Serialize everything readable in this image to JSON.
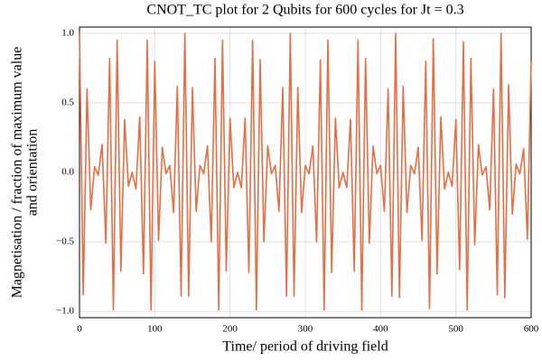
{
  "chart_data": {
    "type": "line",
    "title": "CNOT_TC plot for 2 Qubits for 600 cycles for Jt = 0.3",
    "xlabel": "Time/ period of driving field",
    "ylabel": [
      "Magnetisation / fraction of maximum value",
      "and orientation"
    ],
    "x": [
      0,
      5,
      10,
      15,
      20,
      25,
      30,
      35,
      40,
      45,
      50,
      55,
      60,
      65,
      70,
      75,
      80,
      85,
      90,
      95,
      100,
      105,
      110,
      115,
      120,
      125,
      130,
      135,
      140,
      145,
      150,
      155,
      160,
      165,
      170,
      175,
      180,
      185,
      190,
      195,
      200,
      205,
      210,
      215,
      220,
      225,
      230,
      235,
      240,
      245,
      250,
      255,
      260,
      265,
      270,
      275,
      280,
      285,
      290,
      295,
      300,
      305,
      310,
      315,
      320,
      325,
      330,
      335,
      340,
      345,
      350,
      355,
      360,
      365,
      370,
      375,
      380,
      385,
      390,
      395,
      400,
      405,
      410,
      415,
      420,
      425,
      430,
      435,
      440,
      445,
      450,
      455,
      460,
      465,
      470,
      475,
      480,
      485,
      490,
      495,
      500,
      505,
      510,
      515,
      520,
      525,
      530,
      535,
      540,
      545,
      550,
      555,
      560,
      565,
      570,
      575,
      580,
      585,
      590,
      595,
      600
    ],
    "series": [
      {
        "color": "#e26f46",
        "values": [
          1.0,
          -0.88,
          0.6,
          -0.27,
          0.04,
          -0.02,
          0.2,
          -0.51,
          0.82,
          -0.99,
          0.95,
          -0.71,
          0.38,
          -0.1,
          0.0,
          -0.12,
          0.4,
          -0.73,
          0.95,
          -0.99,
          0.8,
          -0.49,
          0.18,
          -0.01,
          0.05,
          -0.29,
          0.62,
          -0.89,
          1.0,
          -0.89,
          0.61,
          -0.28,
          0.05,
          -0.01,
          0.19,
          -0.5,
          0.82,
          -0.99,
          0.95,
          -0.71,
          0.39,
          -0.11,
          0.0,
          -0.11,
          0.39,
          -0.72,
          0.95,
          -0.99,
          0.81,
          -0.5,
          0.19,
          -0.01,
          0.05,
          -0.28,
          0.61,
          -0.89,
          1.0,
          -0.89,
          0.61,
          -0.29,
          0.05,
          -0.01,
          0.19,
          -0.5,
          0.81,
          -0.99,
          0.95,
          -0.72,
          0.39,
          -0.11,
          0.0,
          -0.11,
          0.38,
          -0.71,
          0.95,
          -0.99,
          0.82,
          -0.51,
          0.19,
          -0.01,
          0.05,
          -0.28,
          0.6,
          -0.89,
          1.0,
          -0.9,
          0.62,
          -0.29,
          0.05,
          -0.01,
          0.18,
          -0.49,
          0.8,
          -0.98,
          0.96,
          -0.73,
          0.4,
          -0.12,
          0.0,
          -0.1,
          0.38,
          -0.7,
          0.94,
          -0.99,
          0.82,
          -0.52,
          0.2,
          -0.02,
          0.04,
          -0.27,
          0.6,
          -0.88,
          1.0,
          -0.9,
          0.63,
          -0.3,
          0.06,
          -0.01,
          0.17,
          -0.48,
          0.8
        ]
      }
    ],
    "xlim": [
      0,
      600
    ],
    "xticks": [
      0,
      100,
      200,
      300,
      400,
      500,
      600
    ],
    "ylim": [
      -1.045,
      1.045
    ],
    "yticks": [
      {
        "value": -1,
        "label": "−1.0"
      },
      {
        "value": -0.5,
        "label": "−0.5"
      },
      {
        "value": 0,
        "label": "0.0"
      },
      {
        "value": 0.5,
        "label": "0.5"
      },
      {
        "value": 1,
        "label": "1.0"
      }
    ],
    "grid": true
  }
}
